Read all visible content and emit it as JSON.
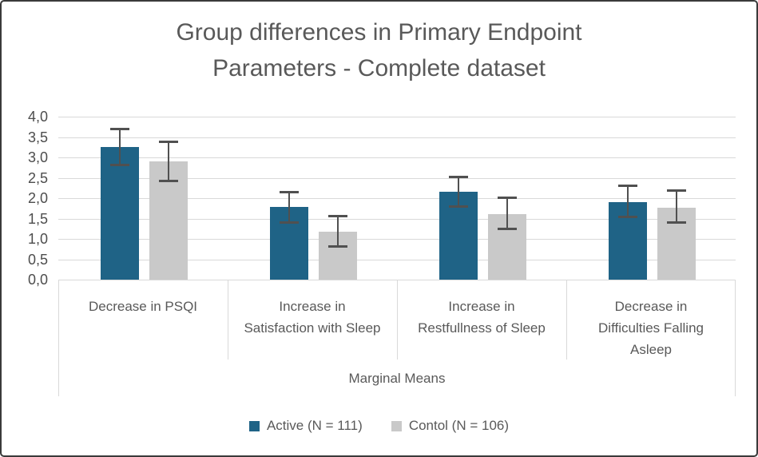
{
  "colors": {
    "active": "#1F6386",
    "control": "#C9C9C9",
    "error_bar": "#505050",
    "gridline": "#D9D9D9",
    "band_border": "#D9D9D9",
    "text": "#595959",
    "frame_border": "#3A3A3A"
  },
  "chart_data": {
    "type": "bar",
    "title": "Group differences in Primary Endpoint Parameters - Complete dataset",
    "title_line1": "Group differences in Primary Endpoint",
    "title_line2": "Parameters - Complete dataset",
    "xlabel": "Marginal Means",
    "ylabel": "",
    "ylim": [
      0,
      4
    ],
    "ytick_step": 0.5,
    "ytick_labels": [
      "0,0",
      "0,5",
      "1,0",
      "1,5",
      "2,0",
      "2,5",
      "3,0",
      "3,5",
      "4,0"
    ],
    "grid": true,
    "legend_position": "bottom",
    "error_bars": true,
    "categories": [
      "Decrease in PSQI",
      "Increase in Satisfaction with Sleep",
      "Increase in Restfullness of Sleep",
      "Decrease in Difficulties Falling Asleep"
    ],
    "series": [
      {
        "name": "Active (N = 111)",
        "color": "#1F6386",
        "values": [
          3.25,
          1.78,
          2.15,
          1.9
        ],
        "error_low": [
          2.8,
          1.4,
          1.78,
          1.52
        ],
        "error_high": [
          3.7,
          2.16,
          2.52,
          2.31
        ]
      },
      {
        "name": "Contol (N = 106)",
        "color": "#C9C9C9",
        "values": [
          2.9,
          1.17,
          1.61,
          1.76
        ],
        "error_low": [
          2.42,
          0.81,
          1.24,
          1.39
        ],
        "error_high": [
          3.4,
          1.57,
          2.02,
          2.2
        ]
      }
    ]
  }
}
